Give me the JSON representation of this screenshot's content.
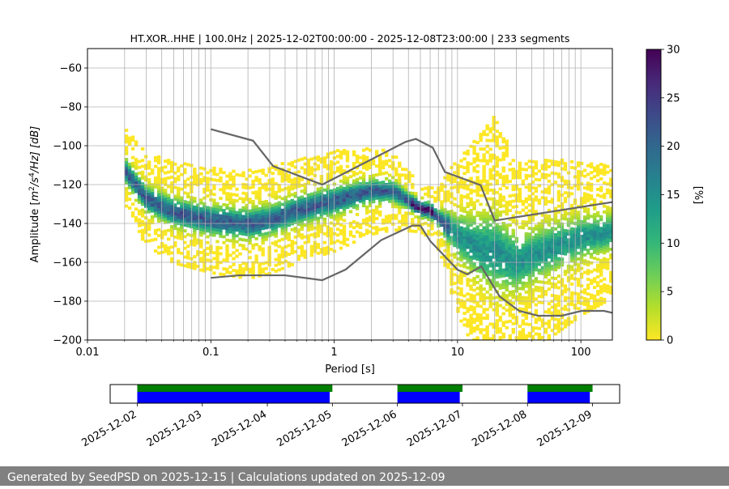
{
  "colors": {
    "nlnm_nhnm_line": "#666666",
    "coverage_data_bar": "#0000ff",
    "coverage_processed_bar": "#007f00",
    "footer_bg": "#808080",
    "grid": "#b0b0b0",
    "colormap": [
      "#fde725",
      "#b5de2b",
      "#6ece58",
      "#35b779",
      "#1f9e89",
      "#26828e",
      "#31688e",
      "#3e4989",
      "#482878",
      "#440154"
    ]
  },
  "chart_data": [
    {
      "type": "heatmap",
      "title": "HT.XOR..HHE | 100.0Hz | 2025-12-02T00:00:00 - 2025-12-08T23:00:00 | 233 segments",
      "xlabel": "Period [s]",
      "ylabel_parts": {
        "prefix": "Amplitude [",
        "m": "m",
        "sup1": "2",
        "slash_s": "/s",
        "sup2": "4",
        "tail": "/Hz] [dB]"
      },
      "xscale": "log",
      "xlim": [
        0.01,
        180
      ],
      "ylim": [
        -200,
        -50
      ],
      "xticks": [
        0.01,
        0.1,
        1,
        10,
        100
      ],
      "xtick_labels": [
        "0.01",
        "0.1",
        "1",
        "10",
        "100"
      ],
      "yticks": [
        -200,
        -180,
        -160,
        -140,
        -120,
        -100,
        -80,
        -60
      ],
      "ytick_labels": [
        "−200",
        "−180",
        "−160",
        "−140",
        "−120",
        "−100",
        "−80",
        "−60"
      ],
      "grid": true,
      "psd_density": {
        "period_start": 0.02,
        "period_end": 180,
        "center_db_points": [
          [
            0.02,
            -113
          ],
          [
            0.03,
            -128
          ],
          [
            0.05,
            -135
          ],
          [
            0.1,
            -139
          ],
          [
            0.2,
            -141
          ],
          [
            0.3,
            -139
          ],
          [
            0.5,
            -134
          ],
          [
            1,
            -129
          ],
          [
            2,
            -124
          ],
          [
            3,
            -124
          ],
          [
            4,
            -129
          ],
          [
            5,
            -133
          ],
          [
            6,
            -134
          ],
          [
            7,
            -138
          ],
          [
            10,
            -147
          ],
          [
            15,
            -153
          ],
          [
            20,
            -155
          ],
          [
            30,
            -161
          ],
          [
            50,
            -155
          ],
          [
            100,
            -148
          ],
          [
            180,
            -145
          ]
        ],
        "band_width_db_points": [
          [
            0.02,
            22
          ],
          [
            0.05,
            26
          ],
          [
            0.2,
            28
          ],
          [
            1,
            26
          ],
          [
            3,
            20
          ],
          [
            5,
            12
          ],
          [
            7,
            16
          ],
          [
            10,
            40
          ],
          [
            20,
            70
          ],
          [
            30,
            52
          ],
          [
            100,
            40
          ],
          [
            180,
            34
          ]
        ]
      },
      "model_lines": [
        {
          "name": "NHNM",
          "points": [
            [
              0.1,
              -91.5
            ],
            [
              0.22,
              -97.4
            ],
            [
              0.32,
              -110.5
            ],
            [
              0.8,
              -120
            ],
            [
              3.8,
              -98
            ],
            [
              4.6,
              -96.5
            ],
            [
              6.3,
              -101
            ],
            [
              7.9,
              -113.5
            ],
            [
              15.4,
              -120.3
            ],
            [
              20,
              -138.5
            ],
            [
              180,
              -129
            ]
          ]
        },
        {
          "name": "NLNM",
          "points": [
            [
              0.1,
              -168
            ],
            [
              0.17,
              -166.7
            ],
            [
              0.4,
              -166.7
            ],
            [
              0.8,
              -169.2
            ],
            [
              1.24,
              -163.7
            ],
            [
              2.4,
              -148.6
            ],
            [
              4.3,
              -141.1
            ],
            [
              5,
              -141.1
            ],
            [
              6,
              -149
            ],
            [
              10,
              -163.8
            ],
            [
              12,
              -166.2
            ],
            [
              15.6,
              -162.1
            ],
            [
              21.9,
              -177.5
            ],
            [
              31.6,
              -185
            ],
            [
              45,
              -187.5
            ],
            [
              70,
              -187.5
            ],
            [
              101,
              -185
            ],
            [
              154,
              -185
            ],
            [
              180,
              -186
            ]
          ]
        }
      ],
      "colorbar": {
        "label": "[%]",
        "min": 0,
        "max": 30,
        "ticks": [
          0,
          5,
          10,
          15,
          20,
          25,
          30
        ],
        "tick_labels": [
          "0",
          "5",
          "10",
          "15",
          "20",
          "25",
          "30"
        ]
      }
    },
    {
      "type": "bar",
      "subtype": "coverage_timeline",
      "xlim": [
        "2025-12-01T14:00",
        "2025-12-09T10:00"
      ],
      "date_ticks": [
        "2025-12-02",
        "2025-12-03",
        "2025-12-04",
        "2025-12-05",
        "2025-12-06",
        "2025-12-07",
        "2025-12-08",
        "2025-12-09"
      ],
      "series": [
        {
          "name": "data",
          "color": "#0000ff",
          "intervals": [
            [
              "2025-12-02T00:00",
              "2025-12-04T23:00"
            ],
            [
              "2025-12-06T00:00",
              "2025-12-06T23:00"
            ],
            [
              "2025-12-08T00:00",
              "2025-12-08T23:00"
            ]
          ]
        },
        {
          "name": "processed",
          "color": "#007f00",
          "intervals": [
            [
              "2025-12-02T00:00",
              "2025-12-05T00:00"
            ],
            [
              "2025-12-06T00:00",
              "2025-12-07T00:00"
            ],
            [
              "2025-12-08T00:00",
              "2025-12-09T00:00"
            ]
          ]
        }
      ]
    }
  ],
  "footer": {
    "text": "Generated by SeedPSD on 2025-12-15 | Calculations updated on 2025-12-09"
  }
}
